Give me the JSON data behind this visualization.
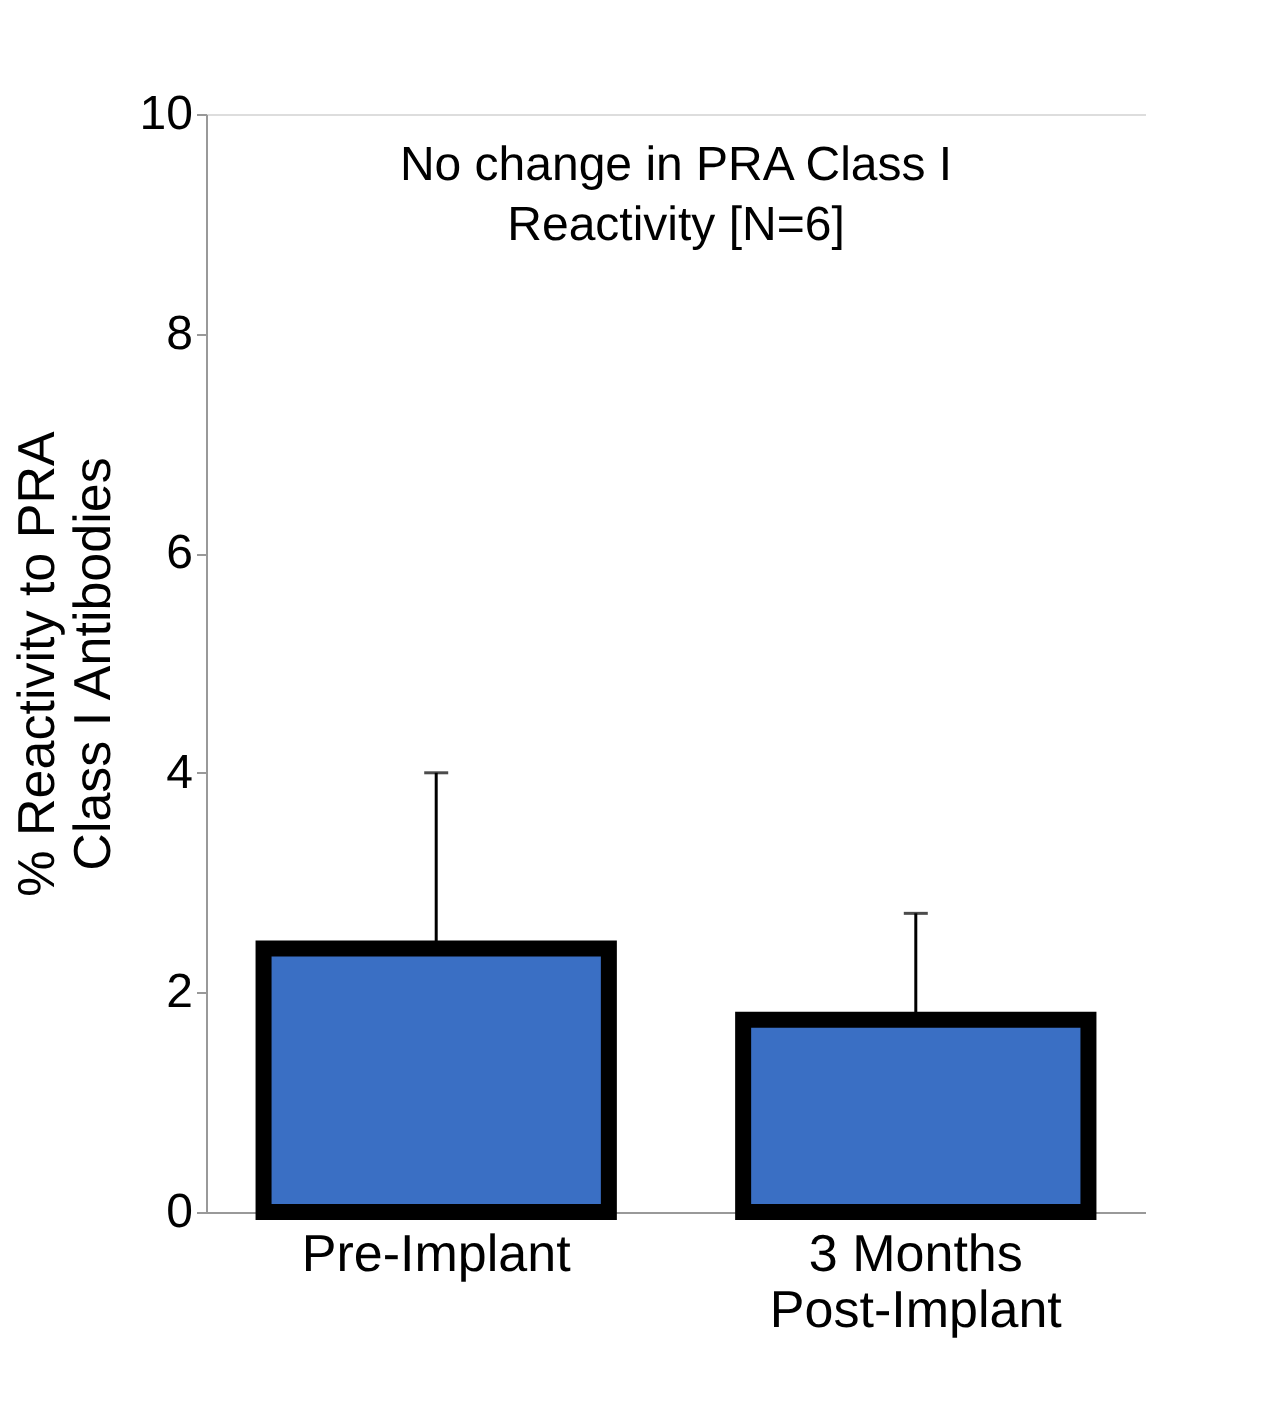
{
  "chart_data": {
    "type": "bar",
    "title": "No change in PRA Class I Reactivity [N=6]",
    "ylabel": "% Reactivity to PRA Class I Antibodies",
    "categories": [
      "Pre-Implant",
      "3 Months Post-Implant"
    ],
    "series": [
      {
        "color": "#3a6fc4",
        "values": [
          2.4,
          1.75
        ],
        "errors": [
          [
            2.4,
            4.0
          ],
          [
            1.75,
            2.72
          ]
        ]
      }
    ],
    "ylim": [
      0,
      10
    ],
    "yticks": [
      0,
      2,
      4,
      6,
      8,
      10
    ],
    "grid": false
  }
}
